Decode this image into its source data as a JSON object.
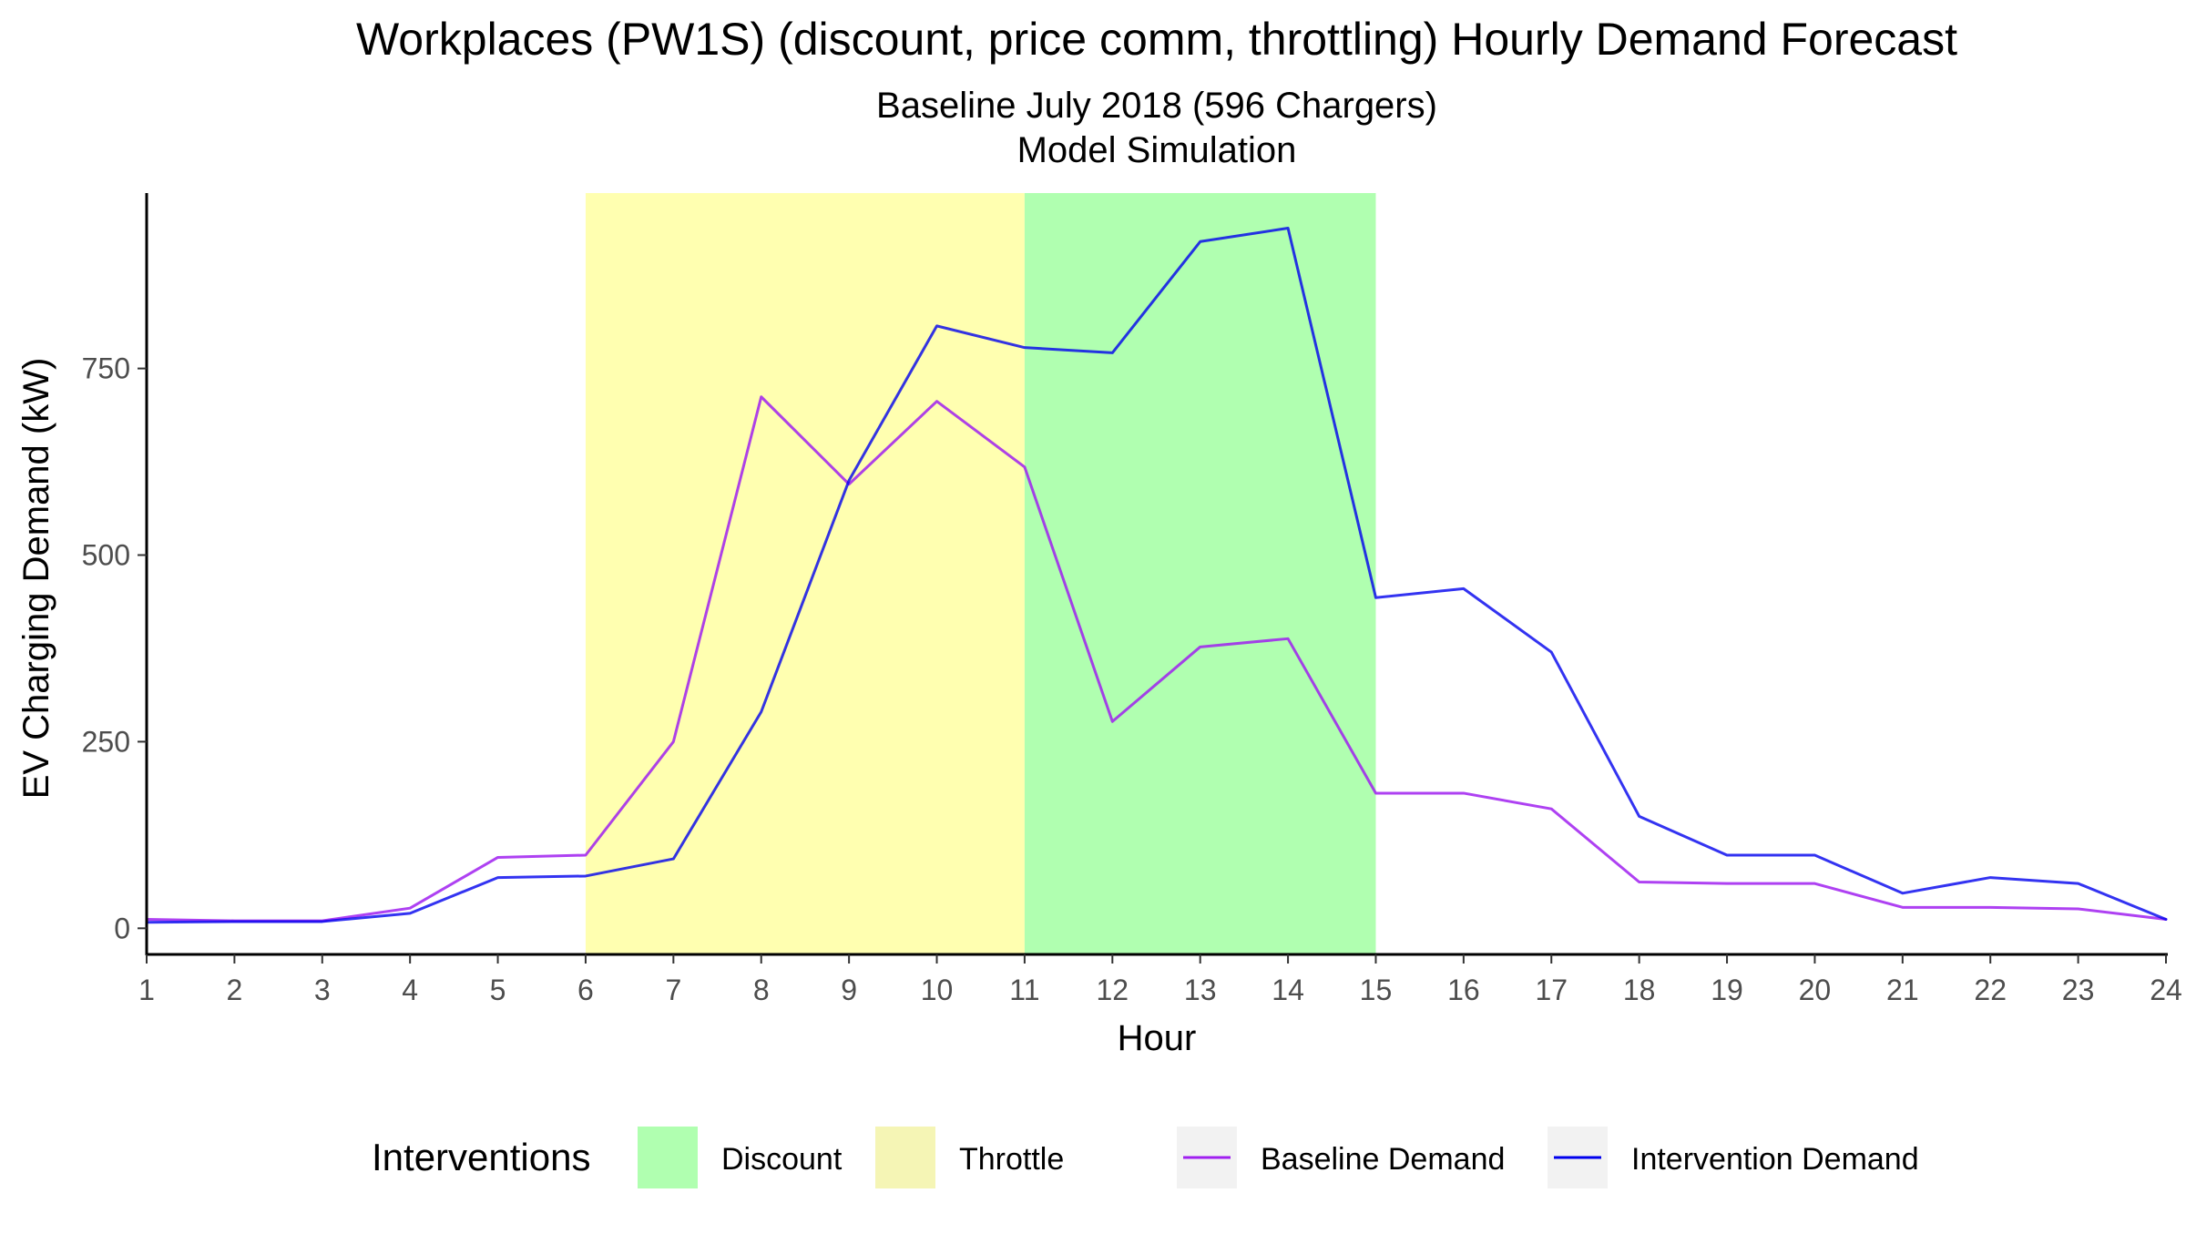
{
  "chart_data": {
    "type": "line",
    "title": "Workplaces (PW1S) (discount, price comm, throttling) Hourly Demand Forecast",
    "subtitle_lines": [
      "Baseline July 2018 (596 Chargers)",
      "Model Simulation"
    ],
    "xlabel": "Hour",
    "ylabel": "EV Charging Demand (kW)",
    "x": [
      1,
      2,
      3,
      4,
      5,
      6,
      7,
      8,
      9,
      10,
      11,
      12,
      13,
      14,
      15,
      16,
      17,
      18,
      19,
      20,
      21,
      22,
      23,
      24
    ],
    "x_ticks": [
      1,
      2,
      3,
      4,
      5,
      6,
      7,
      8,
      9,
      10,
      11,
      12,
      13,
      14,
      15,
      16,
      17,
      18,
      19,
      20,
      21,
      22,
      23,
      24
    ],
    "xlim": [
      1,
      24
    ],
    "y_ticks": [
      0,
      250,
      500,
      750
    ],
    "ylim": [
      -35,
      985
    ],
    "grid": false,
    "legend_position": "bottom",
    "interventions": [
      {
        "name": "Throttle",
        "start": 6,
        "end": 11,
        "color": "#ffffb0"
      },
      {
        "name": "Discount",
        "start": 11,
        "end": 15,
        "color": "#b0ffb0"
      }
    ],
    "series": [
      {
        "name": "Baseline Demand",
        "color": "#a020f0",
        "values": [
          12,
          10,
          10,
          27,
          95,
          98,
          250,
          712,
          595,
          706,
          618,
          277,
          377,
          388,
          181,
          181,
          160,
          62,
          60,
          60,
          28,
          28,
          26,
          12
        ]
      },
      {
        "name": "Intervention Demand",
        "color": "#0000ee",
        "values": [
          8,
          9,
          9,
          20,
          68,
          70,
          93,
          290,
          600,
          807,
          778,
          771,
          920,
          938,
          443,
          455,
          370,
          150,
          98,
          98,
          47,
          68,
          60,
          12
        ]
      }
    ],
    "legend": {
      "title": "Interventions",
      "fill_items": [
        {
          "label": "Discount",
          "color": "#b0ffb0"
        },
        {
          "label": "Throttle",
          "color": "#f5f5b5"
        }
      ],
      "line_items": [
        {
          "label": "Baseline Demand",
          "color": "#a020f0"
        },
        {
          "label": "Intervention Demand",
          "color": "#0000ee"
        }
      ]
    }
  }
}
